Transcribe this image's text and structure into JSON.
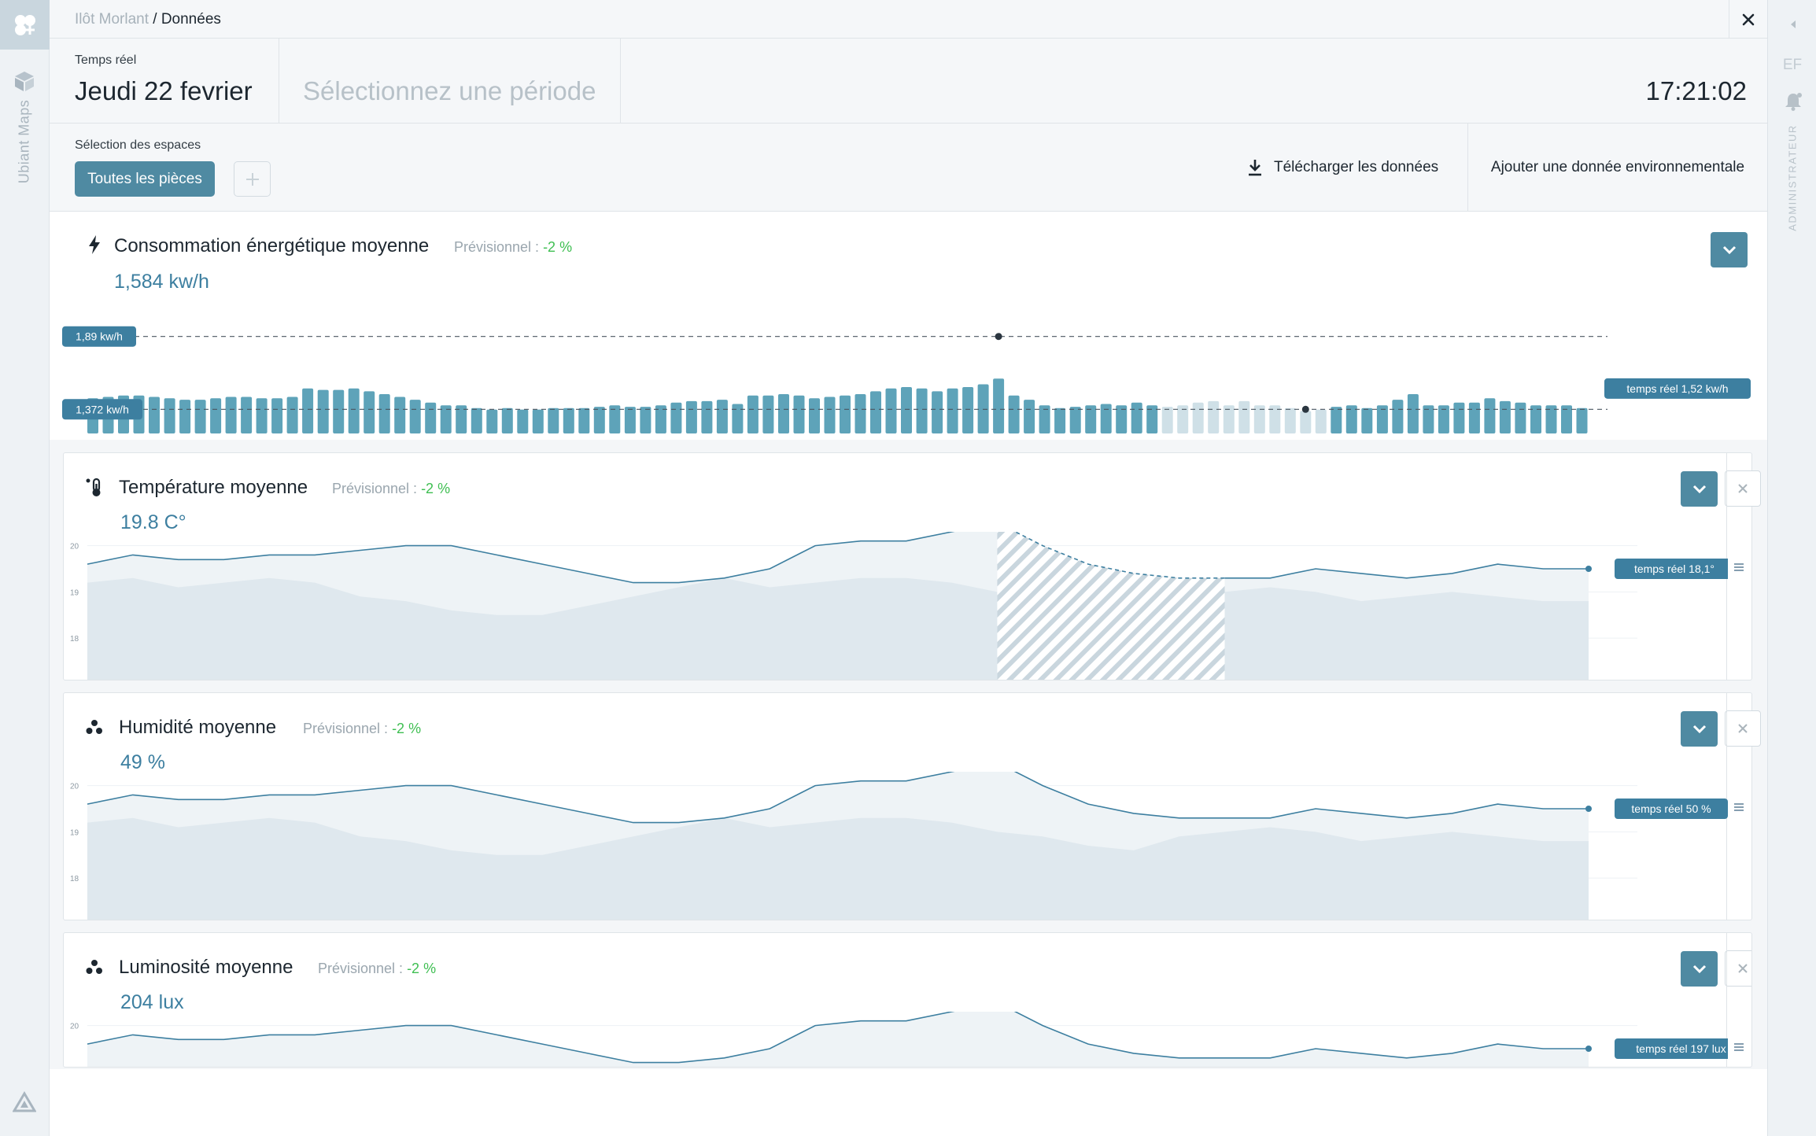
{
  "app": {
    "name": "Ubiant Maps"
  },
  "breadcrumb": {
    "site": "Ilôt Morlant",
    "separator": " / ",
    "page": "Données"
  },
  "header": {
    "realtime_label": "Temps réel",
    "date": "Jeudi 22 fevrier",
    "period_placeholder": "Sélectionnez une période",
    "clock": "17:21:02"
  },
  "spaces": {
    "label": "Sélection des espaces",
    "all_rooms": "Toutes les pièces",
    "add": "+",
    "download": "Télécharger les données",
    "add_env": "Ajouter une donnée environnementale"
  },
  "user": {
    "initials": "EF",
    "role": "ADMINISTRATEUR"
  },
  "colors": {
    "accent": "#4f8aa2",
    "value": "#3d7fa0",
    "positive": "#3fbf52",
    "bar_live": "#5ea3b9",
    "bar_forecast": "#cfe0e7",
    "area": "#dfe8ee"
  },
  "energy": {
    "icon": "lightning-icon",
    "title": "Consommation énergétique moyenne",
    "forecast_label": "Prévisionnel : ",
    "forecast_value": "-2 %",
    "value": "1,584 kw/h",
    "max_label": "1,89 kw/h",
    "min_label": "1,372 kw/h",
    "realtime_label": "temps réel 1,52 kw/h"
  },
  "temperature": {
    "icon": "thermometer-icon",
    "title": "Température moyenne",
    "forecast_label": "Prévisionnel : ",
    "forecast_value": "-2 %",
    "value": "19.8 C°",
    "realtime_label": "temps réel 18,1°",
    "y_ticks": [
      "20",
      "19",
      "18"
    ]
  },
  "humidity": {
    "icon": "droplets-icon",
    "title": "Humidité moyenne",
    "forecast_label": "Prévisionnel : ",
    "forecast_value": "-2 %",
    "value": "49 %",
    "realtime_label": "temps réel 50 %",
    "y_ticks": [
      "20",
      "19",
      "18"
    ]
  },
  "luminosity": {
    "icon": "droplets-icon",
    "title": "Luminosité moyenne",
    "forecast_label": "Prévisionnel : ",
    "forecast_value": "-2 %",
    "value": "204 lux",
    "realtime_label": "temps réel 197 lux",
    "y_ticks": [
      "20"
    ]
  },
  "chart_data": [
    {
      "type": "bar",
      "values": [
        1.45,
        1.46,
        1.47,
        1.47,
        1.46,
        1.45,
        1.44,
        1.44,
        1.45,
        1.46,
        1.46,
        1.45,
        1.45,
        1.46,
        1.52,
        1.51,
        1.51,
        1.52,
        1.5,
        1.48,
        1.46,
        1.44,
        1.42,
        1.4,
        1.4,
        1.38,
        1.37,
        1.38,
        1.37,
        1.37,
        1.38,
        1.38,
        1.38,
        1.39,
        1.4,
        1.39,
        1.39,
        1.4,
        1.42,
        1.43,
        1.43,
        1.44,
        1.41,
        1.47,
        1.47,
        1.48,
        1.47,
        1.45,
        1.46,
        1.47,
        1.48,
        1.5,
        1.52,
        1.53,
        1.52,
        1.5,
        1.52,
        1.53,
        1.55,
        1.59,
        1.47,
        1.44,
        1.4,
        1.38,
        1.39,
        1.4,
        1.41,
        1.4,
        1.42,
        1.4,
        1.39,
        1.4,
        1.42,
        1.43,
        1.4,
        1.43,
        1.4,
        1.4,
        1.38,
        1.36,
        1.37,
        1.39,
        1.4,
        1.38,
        1.4,
        1.44,
        1.48,
        1.4,
        1.4,
        1.42,
        1.42,
        1.45,
        1.43,
        1.42,
        1.4,
        1.4,
        1.4,
        1.38
      ],
      "forecast_range": [
        70,
        80
      ],
      "ylim": [
        1.2,
        1.95
      ],
      "reference_lines": [
        1.89,
        1.372
      ],
      "realtime": 1.52
    },
    {
      "type": "area",
      "name": "Température",
      "ylim": [
        17.1,
        20.3
      ],
      "y_ticks": [
        20,
        19,
        18
      ],
      "values": [
        19.6,
        19.8,
        19.7,
        19.7,
        19.8,
        19.8,
        19.9,
        20.0,
        20.0,
        19.8,
        19.6,
        19.4,
        19.2,
        19.2,
        19.3,
        19.5,
        20.0,
        20.1,
        20.1,
        20.3,
        20.5,
        20.0,
        19.6,
        19.4,
        19.3,
        19.3,
        19.3,
        19.5,
        19.4,
        19.3,
        19.4,
        19.6,
        19.5,
        19.5
      ],
      "band": [
        19.2,
        19.3,
        19.1,
        19.2,
        19.3,
        19.2,
        18.9,
        18.8,
        18.6,
        18.5,
        18.5,
        18.7,
        18.9,
        19.1,
        19.3,
        19.1,
        19.2,
        19.3,
        19.3,
        19.2,
        19.0,
        18.9,
        18.7,
        18.6,
        18.9,
        19.0,
        19.1,
        19.0,
        18.8,
        18.9,
        19.0,
        18.9,
        18.8,
        18.8
      ],
      "forecast_range": [
        20,
        25
      ]
    },
    {
      "type": "area",
      "name": "Humidité",
      "ylim": [
        17.1,
        20.3
      ],
      "y_ticks": [
        20,
        19,
        18
      ],
      "values": [
        19.6,
        19.8,
        19.7,
        19.7,
        19.8,
        19.8,
        19.9,
        20.0,
        20.0,
        19.8,
        19.6,
        19.4,
        19.2,
        19.2,
        19.3,
        19.5,
        20.0,
        20.1,
        20.1,
        20.3,
        20.5,
        20.0,
        19.6,
        19.4,
        19.3,
        19.3,
        19.3,
        19.5,
        19.4,
        19.3,
        19.4,
        19.6,
        19.5,
        19.5
      ],
      "band": [
        19.2,
        19.3,
        19.1,
        19.2,
        19.3,
        19.2,
        18.9,
        18.8,
        18.6,
        18.5,
        18.5,
        18.7,
        18.9,
        19.1,
        19.3,
        19.1,
        19.2,
        19.3,
        19.3,
        19.2,
        19.0,
        18.9,
        18.7,
        18.6,
        18.9,
        19.0,
        19.1,
        19.0,
        18.8,
        18.9,
        19.0,
        18.9,
        18.8,
        18.8
      ]
    },
    {
      "type": "area",
      "name": "Luminosité",
      "ylim": [
        17.1,
        20.3
      ],
      "y_ticks": [
        20
      ],
      "values": [
        19.6,
        19.8,
        19.7,
        19.7,
        19.8,
        19.8,
        19.9,
        20.0,
        20.0,
        19.8,
        19.6,
        19.4,
        19.2,
        19.2,
        19.3,
        19.5,
        20.0,
        20.1,
        20.1,
        20.3,
        20.5,
        20.0,
        19.6,
        19.4,
        19.3,
        19.3,
        19.3,
        19.5,
        19.4,
        19.3,
        19.4,
        19.6,
        19.5,
        19.5
      ],
      "band": []
    }
  ]
}
